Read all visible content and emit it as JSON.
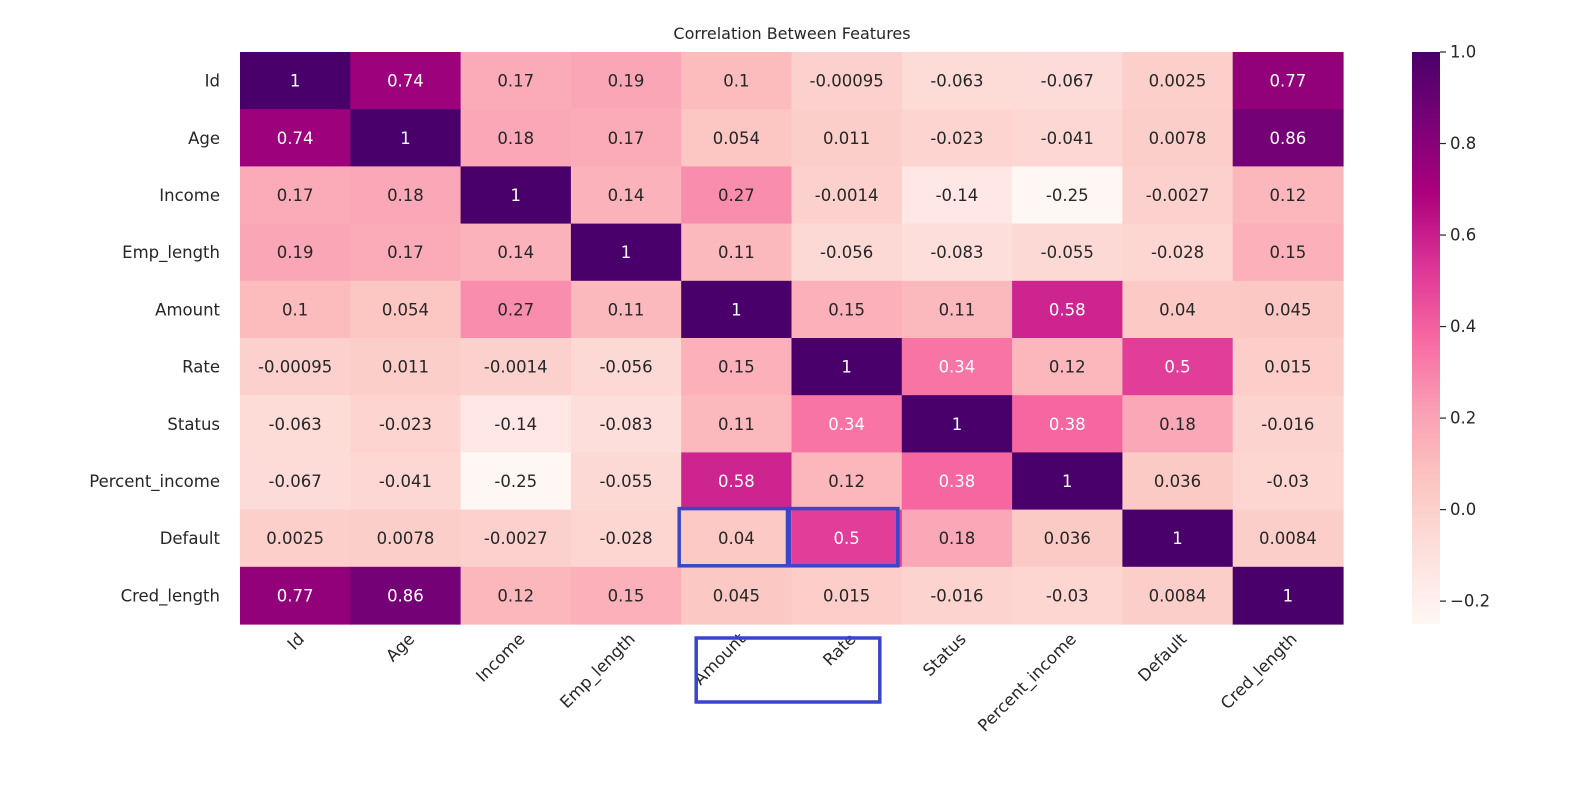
{
  "chart_data": {
    "type": "heatmap",
    "title": "Correlation Between Features",
    "xlabel": "",
    "ylabel": "",
    "labels": [
      "Id",
      "Age",
      "Income",
      "Emp_length",
      "Amount",
      "Rate",
      "Status",
      "Percent_income",
      "Default",
      "Cred_length"
    ],
    "matrix": [
      [
        "1",
        "0.74",
        "0.17",
        "0.19",
        "0.1",
        "-0.00095",
        "-0.063",
        "-0.067",
        "0.0025",
        "0.77"
      ],
      [
        "0.74",
        "1",
        "0.18",
        "0.17",
        "0.054",
        "0.011",
        "-0.023",
        "-0.041",
        "0.0078",
        "0.86"
      ],
      [
        "0.17",
        "0.18",
        "1",
        "0.14",
        "0.27",
        "-0.0014",
        "-0.14",
        "-0.25",
        "-0.0027",
        "0.12"
      ],
      [
        "0.19",
        "0.17",
        "0.14",
        "1",
        "0.11",
        "-0.056",
        "-0.083",
        "-0.055",
        "-0.028",
        "0.15"
      ],
      [
        "0.1",
        "0.054",
        "0.27",
        "0.11",
        "1",
        "0.15",
        "0.11",
        "0.58",
        "0.04",
        "0.045"
      ],
      [
        "-0.00095",
        "0.011",
        "-0.0014",
        "-0.056",
        "0.15",
        "1",
        "0.34",
        "0.12",
        "0.5",
        "0.015"
      ],
      [
        "-0.063",
        "-0.023",
        "-0.14",
        "-0.083",
        "0.11",
        "0.34",
        "1",
        "0.38",
        "0.18",
        "-0.016"
      ],
      [
        "-0.067",
        "-0.041",
        "-0.25",
        "-0.055",
        "0.58",
        "0.12",
        "0.38",
        "1",
        "0.036",
        "-0.03"
      ],
      [
        "0.0025",
        "0.0078",
        "-0.0027",
        "-0.028",
        "0.04",
        "0.5",
        "0.18",
        "0.036",
        "1",
        "0.0084"
      ],
      [
        "0.77",
        "0.86",
        "0.12",
        "0.15",
        "0.045",
        "0.015",
        "-0.016",
        "-0.03",
        "0.0084",
        "1"
      ]
    ],
    "colorbar": {
      "min": -0.25,
      "max": 1.0,
      "ticks": [
        {
          "value": 1.0,
          "label": "1.0"
        },
        {
          "value": 0.8,
          "label": "0.8"
        },
        {
          "value": 0.6,
          "label": "0.6"
        },
        {
          "value": 0.4,
          "label": "0.4"
        },
        {
          "value": 0.2,
          "label": "0.2"
        },
        {
          "value": 0.0,
          "label": "0.0"
        },
        {
          "value": -0.2,
          "label": "−0.2"
        }
      ]
    },
    "colormap": [
      "#fff7f3",
      "#fde0dd",
      "#fcc5c0",
      "#fa9fb5",
      "#f768a1",
      "#dd3497",
      "#ae017e",
      "#7a0177",
      "#49006a"
    ],
    "highlights": {
      "color": "#3b45c9",
      "cells": [
        {
          "row": 8,
          "col": 4
        },
        {
          "row": 8,
          "col": 5
        }
      ],
      "xlabel_groups": [
        {
          "from": 4,
          "to": 5
        }
      ]
    }
  }
}
